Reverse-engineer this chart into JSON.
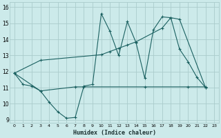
{
  "bg_color": "#cceaea",
  "grid_color": "#aacccc",
  "line_color": "#1a6060",
  "line1_x": [
    0,
    1,
    2,
    3,
    4,
    5,
    6,
    7,
    8,
    9,
    10,
    11,
    12,
    13,
    14,
    15,
    16,
    17,
    18,
    19,
    20,
    21,
    22
  ],
  "line1_y": [
    11.9,
    11.2,
    11.1,
    10.8,
    10.1,
    9.5,
    9.1,
    9.15,
    11.1,
    11.2,
    15.6,
    14.5,
    13.0,
    15.1,
    13.8,
    11.6,
    14.6,
    15.4,
    15.35,
    13.4,
    12.6,
    11.65,
    11.0
  ],
  "line2_x": [
    0,
    3,
    10,
    11,
    12,
    13,
    14,
    17,
    18,
    19,
    22
  ],
  "line2_y": [
    11.9,
    12.7,
    13.05,
    13.25,
    13.45,
    13.65,
    13.85,
    14.7,
    15.35,
    15.25,
    11.0
  ],
  "line3_x": [
    0,
    3,
    7,
    8,
    15,
    20,
    22
  ],
  "line3_y": [
    11.9,
    10.8,
    11.05,
    11.05,
    11.05,
    11.05,
    11.05
  ],
  "xlabel": "Humidex (Indice chaleur)",
  "xlim": [
    -0.5,
    23.5
  ],
  "ylim": [
    8.8,
    16.3
  ],
  "yticks": [
    9,
    10,
    11,
    12,
    13,
    14,
    15,
    16
  ],
  "xticks": [
    0,
    1,
    2,
    3,
    4,
    5,
    6,
    7,
    8,
    9,
    10,
    11,
    12,
    13,
    14,
    15,
    16,
    17,
    18,
    19,
    20,
    21,
    22,
    23
  ]
}
